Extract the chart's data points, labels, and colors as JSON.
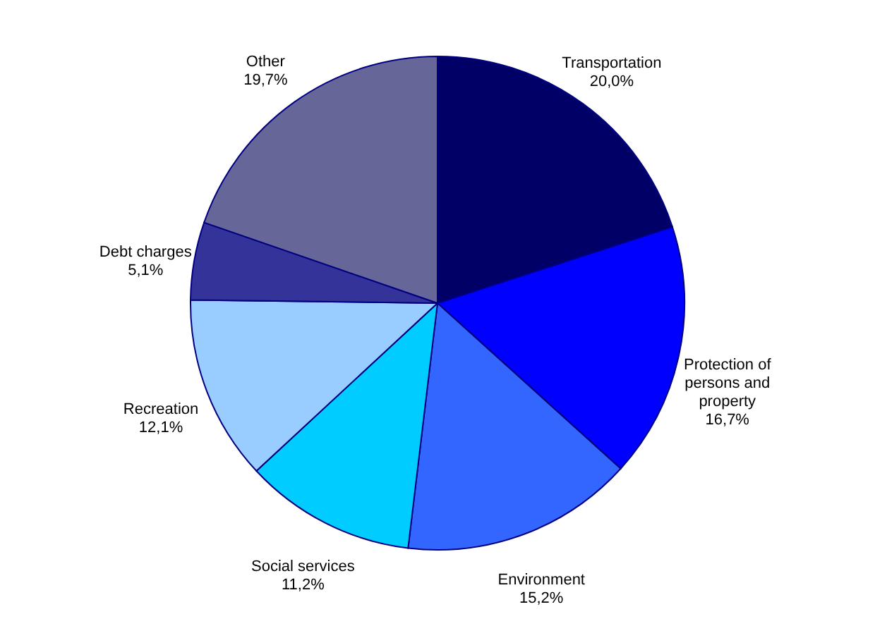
{
  "chart_data": {
    "type": "pie",
    "categories": [
      "Transportation",
      "Protection of persons and property",
      "Environment",
      "Social services",
      "Recreation",
      "Debt charges",
      "Other"
    ],
    "values": [
      20.0,
      16.7,
      15.2,
      11.2,
      12.1,
      5.1,
      19.7
    ],
    "colors": [
      "#000066",
      "#0000ff",
      "#3366ff",
      "#00ccff",
      "#99ccff",
      "#333399",
      "#666699"
    ],
    "value_labels": [
      "20,0%",
      "16,7%",
      "15,2%",
      "11,2%",
      "12,1%",
      "5,1%",
      "19,7%"
    ]
  }
}
